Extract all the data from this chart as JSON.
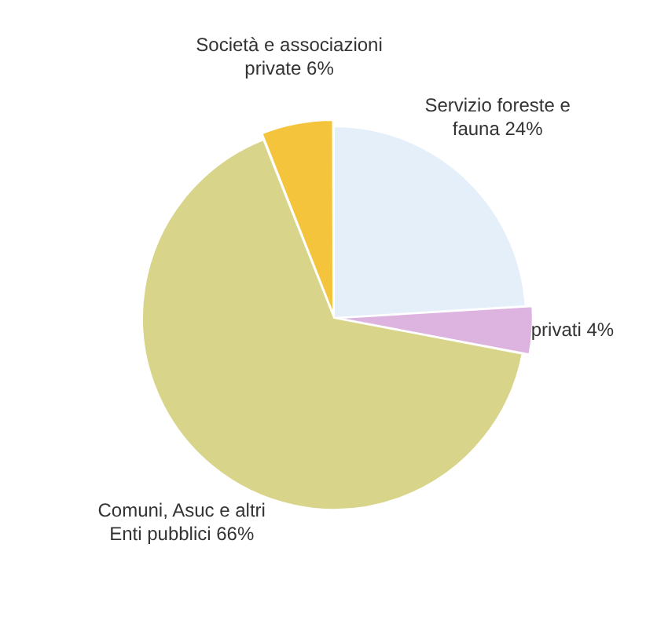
{
  "chart_data": {
    "type": "pie",
    "categories": [
      "Servizio foreste e fauna",
      "privati",
      "Comuni, Asuc e altri Enti pubblici",
      "Società e associazioni private"
    ],
    "values": [
      24,
      4,
      66,
      6
    ],
    "value_labels": [
      "24%",
      "4%",
      "66%",
      "6%"
    ],
    "colors": [
      "#e4effa",
      "#dcb4df",
      "#d8d58a",
      "#f4c53c"
    ],
    "legend": false
  }
}
